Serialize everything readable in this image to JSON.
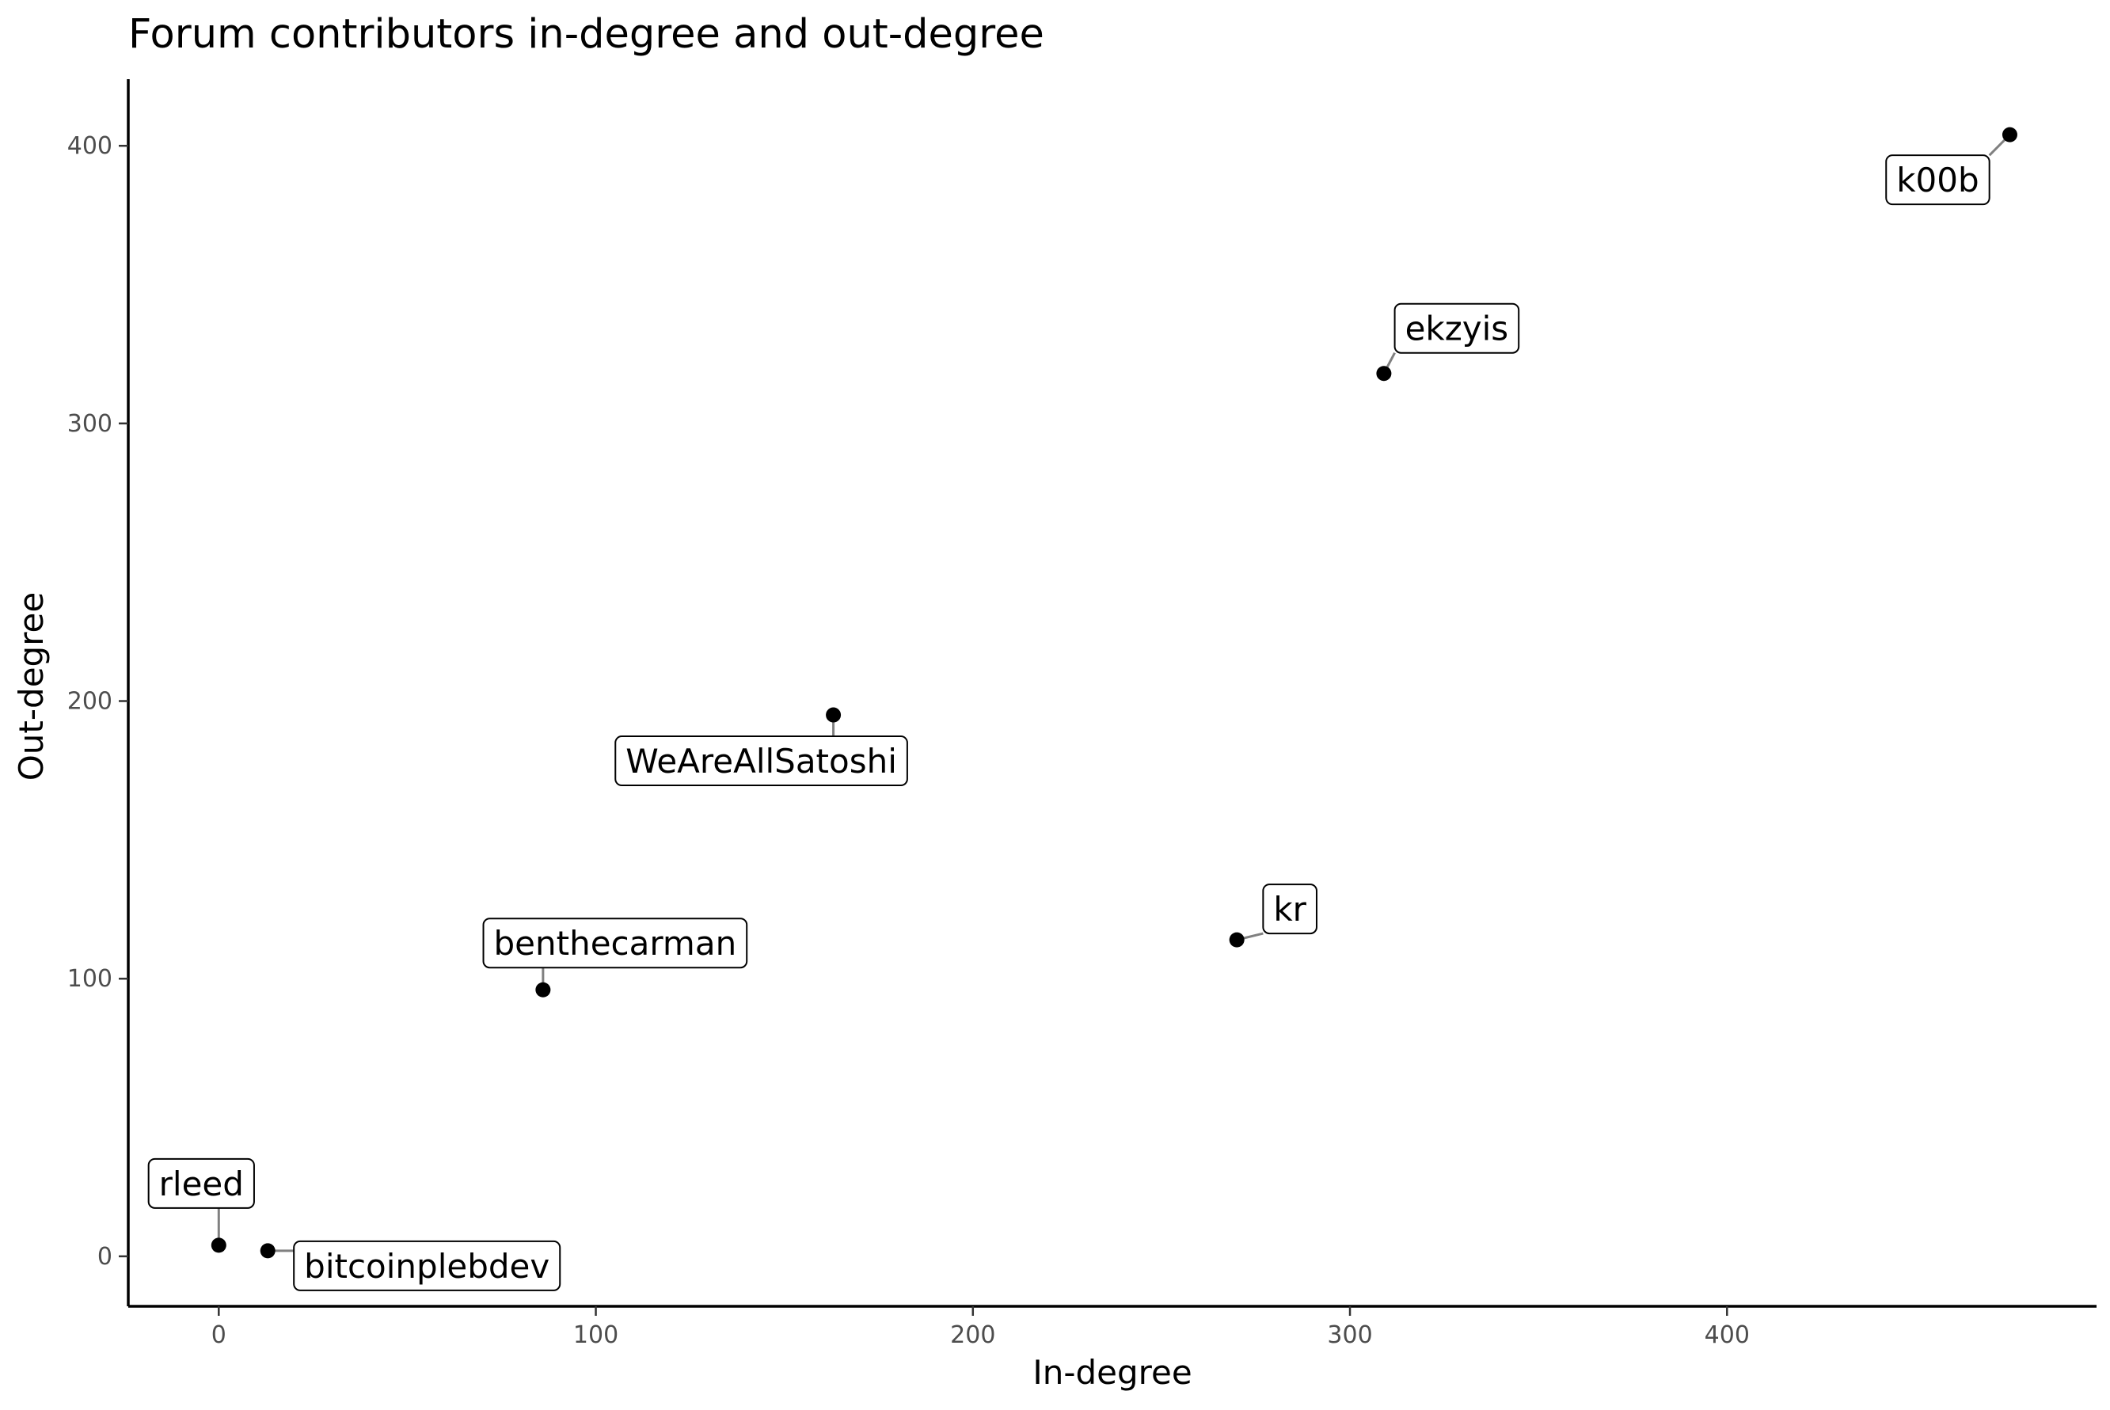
{
  "chart_data": {
    "type": "scatter",
    "title": "Forum contributors in-degree and out-degree",
    "xlabel": "In-degree",
    "ylabel": "Out-degree",
    "xlim": [
      -24,
      498
    ],
    "ylim": [
      -18,
      424
    ],
    "xticks": [
      0,
      100,
      200,
      300,
      400
    ],
    "yticks": [
      0,
      100,
      200,
      300,
      400
    ],
    "grid": false,
    "legend": "none",
    "colors": {
      "point": "#000000",
      "axis": "#000000",
      "tick_text": "#4d4d4d",
      "connector": "#808080"
    },
    "points": [
      {
        "label": "rleed",
        "x": 0,
        "y": 4
      },
      {
        "label": "bitcoinplebdev",
        "x": 13,
        "y": 2
      },
      {
        "label": "benthecarman",
        "x": 86,
        "y": 96
      },
      {
        "label": "WeAreAllSatoshi",
        "x": 163,
        "y": 195
      },
      {
        "label": "kr",
        "x": 270,
        "y": 114
      },
      {
        "label": "ekzyis",
        "x": 309,
        "y": 318
      },
      {
        "label": "k00b",
        "x": 475,
        "y": 404
      }
    ]
  }
}
